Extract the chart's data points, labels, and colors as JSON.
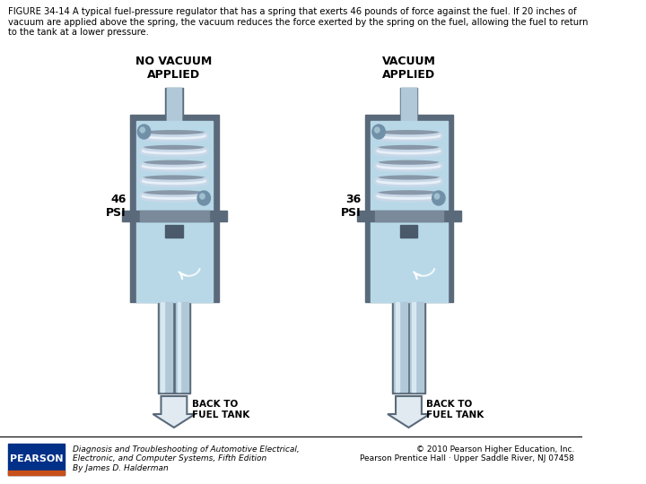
{
  "title_text": "FIGURE 34-14 A typical fuel-pressure regulator that has a spring that exerts 46 pounds of force against the fuel. If 20 inches of\nvacuum are applied above the spring, the vacuum reduces the force exerted by the spring on the fuel, allowing the fuel to return\nto the tank at a lower pressure.",
  "left_label": "NO VACUUM\nAPPLIED",
  "right_label": "VACUUM\nAPPLIED",
  "left_psi": "46\nPSI",
  "right_psi": "36\nPSI",
  "back_to_fuel_tank": "BACK TO\nFUEL TANK",
  "body_color": "#5a6a7a",
  "body_light": "#6e8090",
  "spring_color": "#c8d8e8",
  "spring_highlight": "#e8f0f8",
  "spring_shadow": "#8898a8",
  "light_blue": "#b8d8e8",
  "medium_blue": "#90b8d0",
  "dark_gray": "#4a5a6a",
  "tube_color": "#b0c8d8",
  "tube_highlight": "#d8e8f0",
  "arrow_color": "#e0eaf0",
  "ball_color": "#7090a8",
  "pearson_blue": "#003087",
  "pearson_orange": "#c8501a",
  "footer_text_left": "Diagnosis and Troubleshooting of Automotive Electrical,\nElectronic, and Computer Systems, Fifth Edition\nBy James D. Halderman",
  "footer_text_right": "© 2010 Pearson Higher Education, Inc.\nPearson Prentice Hall · Upper Saddle River, NJ 07458",
  "bg_color": "#ffffff"
}
